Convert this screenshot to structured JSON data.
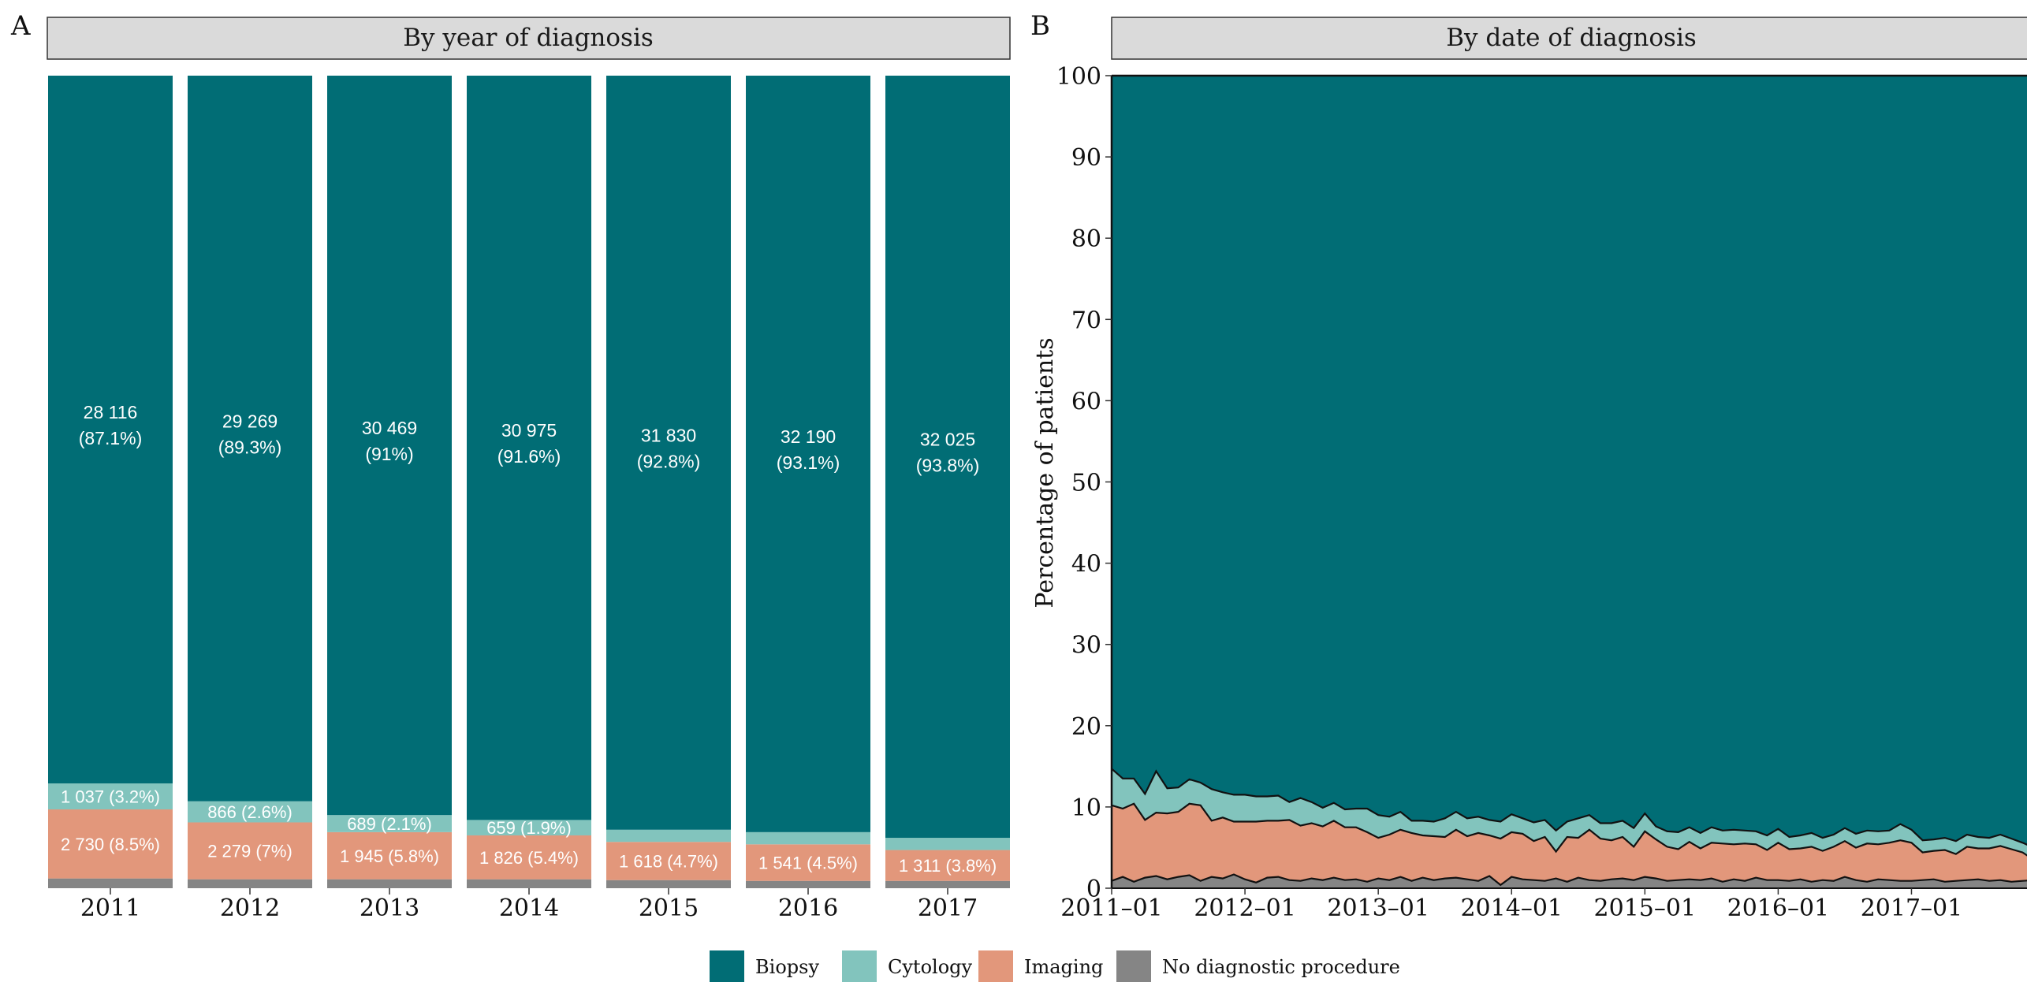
{
  "colors": {
    "biopsy": "#016D75",
    "cytology": "#82C4BD",
    "imaging": "#E2977B",
    "none": "#858585",
    "strip": "#DADADA",
    "label_text": "#FFFFFF"
  },
  "legend": {
    "items": [
      {
        "key": "biopsy",
        "label": "Biopsy"
      },
      {
        "key": "cytology",
        "label": "Cytology"
      },
      {
        "key": "imaging",
        "label": "Imaging"
      },
      {
        "key": "none",
        "label": "No diagnostic procedure"
      }
    ]
  },
  "chart_data": [
    {
      "panel": "A",
      "type": "bar",
      "stacked": true,
      "title": "By year of diagnosis",
      "xlabel": "",
      "ylabel": "",
      "ylim": [
        0,
        100
      ],
      "categories": [
        "2011",
        "2012",
        "2013",
        "2014",
        "2015",
        "2016",
        "2017"
      ],
      "series": [
        {
          "key": "none",
          "name": "No diagnostic procedure",
          "values": [
            1.2,
            1.1,
            1.1,
            1.1,
            1.0,
            0.9,
            0.9
          ]
        },
        {
          "key": "imaging",
          "name": "Imaging",
          "values": [
            8.5,
            7.0,
            5.8,
            5.4,
            4.7,
            4.5,
            3.8
          ]
        },
        {
          "key": "cytology",
          "name": "Cytology",
          "values": [
            3.2,
            2.6,
            2.1,
            1.9,
            1.5,
            1.5,
            1.5
          ]
        },
        {
          "key": "biopsy",
          "name": "Biopsy",
          "values": [
            87.1,
            89.3,
            91.0,
            91.6,
            92.8,
            93.1,
            93.8
          ]
        }
      ],
      "data_labels": {
        "biopsy": [
          [
            "28 116",
            "(87.1%)"
          ],
          [
            "29 269",
            "(89.3%)"
          ],
          [
            "30 469",
            "(91%)"
          ],
          [
            "30 975",
            "(91.6%)"
          ],
          [
            "31 830",
            "(92.8%)"
          ],
          [
            "32 190",
            "(93.1%)"
          ],
          [
            "32 025",
            "(93.8%)"
          ]
        ],
        "cytology": [
          "1 037 (3.2%)",
          "866 (2.6%)",
          "689 (2.1%)",
          "659 (1.9%)",
          "",
          "",
          ""
        ],
        "imaging": [
          "2 730 (8.5%)",
          "2 279 (7%)",
          "1 945 (5.8%)",
          "1 826 (5.4%)",
          "1 618 (4.7%)",
          "1 541 (4.5%)",
          "1 311 (3.8%)"
        ]
      }
    },
    {
      "panel": "B",
      "type": "area",
      "stacked": true,
      "title": "By date of diagnosis",
      "xlabel": "",
      "ylabel": "Percentage of patients",
      "ylim": [
        0,
        100
      ],
      "yticks": [
        "0",
        "10",
        "20",
        "30",
        "40",
        "50",
        "60",
        "70",
        "80",
        "90",
        "100"
      ],
      "xticks": [
        "2011–01",
        "2012–01",
        "2013–01",
        "2014–01",
        "2015–01",
        "2016–01",
        "2017–01"
      ],
      "x": [
        "2011-01",
        "2011-02",
        "2011-03",
        "2011-04",
        "2011-05",
        "2011-06",
        "2011-07",
        "2011-08",
        "2011-09",
        "2011-10",
        "2011-11",
        "2011-12",
        "2012-01",
        "2012-02",
        "2012-03",
        "2012-04",
        "2012-05",
        "2012-06",
        "2012-07",
        "2012-08",
        "2012-09",
        "2012-10",
        "2012-11",
        "2012-12",
        "2013-01",
        "2013-02",
        "2013-03",
        "2013-04",
        "2013-05",
        "2013-06",
        "2013-07",
        "2013-08",
        "2013-09",
        "2013-10",
        "2013-11",
        "2013-12",
        "2014-01",
        "2014-02",
        "2014-03",
        "2014-04",
        "2014-05",
        "2014-06",
        "2014-07",
        "2014-08",
        "2014-09",
        "2014-10",
        "2014-11",
        "2014-12",
        "2015-01",
        "2015-02",
        "2015-03",
        "2015-04",
        "2015-05",
        "2015-06",
        "2015-07",
        "2015-08",
        "2015-09",
        "2015-10",
        "2015-11",
        "2015-12",
        "2016-01",
        "2016-02",
        "2016-03",
        "2016-04",
        "2016-05",
        "2016-06",
        "2016-07",
        "2016-08",
        "2016-09",
        "2016-10",
        "2016-11",
        "2016-12",
        "2017-01",
        "2017-02",
        "2017-03",
        "2017-04",
        "2017-05",
        "2017-06",
        "2017-07",
        "2017-08",
        "2017-09",
        "2017-10",
        "2017-11",
        "2017-12"
      ],
      "series": [
        {
          "key": "none",
          "name": "No diagnostic procedure",
          "values": [
            0.9,
            1.4,
            0.8,
            1.3,
            1.5,
            1.1,
            1.4,
            1.6,
            0.9,
            1.4,
            1.2,
            1.7,
            1.1,
            0.7,
            1.3,
            1.4,
            1.0,
            0.9,
            1.2,
            1.0,
            1.3,
            1.0,
            1.1,
            0.8,
            1.2,
            1.0,
            1.4,
            0.9,
            1.3,
            1.0,
            1.2,
            1.3,
            1.1,
            0.9,
            1.5,
            0.4,
            1.4,
            1.1,
            1.0,
            0.9,
            1.2,
            0.8,
            1.3,
            1.0,
            0.9,
            1.1,
            1.2,
            1.0,
            1.4,
            1.2,
            0.9,
            1.0,
            1.1,
            1.0,
            1.2,
            0.8,
            1.1,
            0.9,
            1.3,
            1.0,
            1.0,
            0.9,
            1.1,
            0.8,
            1.0,
            0.9,
            1.4,
            1.0,
            0.8,
            1.1,
            1.0,
            0.9,
            0.9,
            1.0,
            1.1,
            0.8,
            0.9,
            1.0,
            1.1,
            0.9,
            1.0,
            0.8,
            0.9,
            1.0
          ]
        },
        {
          "key": "imaging",
          "name": "Imaging",
          "values": [
            9.3,
            8.4,
            9.6,
            7.1,
            7.8,
            8.1,
            8.0,
            8.8,
            9.3,
            6.9,
            7.5,
            6.5,
            7.1,
            7.5,
            7.0,
            6.9,
            7.4,
            6.8,
            6.8,
            6.6,
            7.0,
            6.5,
            6.4,
            6.1,
            5.0,
            5.6,
            5.8,
            5.9,
            5.2,
            5.4,
            5.1,
            5.9,
            5.3,
            5.9,
            5.0,
            5.7,
            5.5,
            5.6,
            4.8,
            5.4,
            3.3,
            5.5,
            4.9,
            6.2,
            5.2,
            4.8,
            5.1,
            4.1,
            5.6,
            4.8,
            4.2,
            3.8,
            4.6,
            3.9,
            4.4,
            4.7,
            4.3,
            4.6,
            4.1,
            3.7,
            4.6,
            3.9,
            3.8,
            4.3,
            3.6,
            4.2,
            4.4,
            4.0,
            4.7,
            4.3,
            4.6,
            5.0,
            4.7,
            3.4,
            3.5,
            3.9,
            3.3,
            4.1,
            3.8,
            4.0,
            4.2,
            4.0,
            3.5,
            2.5
          ]
        },
        {
          "key": "cytology",
          "name": "Cytology",
          "values": [
            4.5,
            3.7,
            3.1,
            3.2,
            5.1,
            3.1,
            3.0,
            3.0,
            2.8,
            3.9,
            3.1,
            3.3,
            3.3,
            3.1,
            3.0,
            3.1,
            2.2,
            3.4,
            2.6,
            2.3,
            2.2,
            2.2,
            2.3,
            2.9,
            2.8,
            2.2,
            2.2,
            1.5,
            1.8,
            1.8,
            2.3,
            2.2,
            2.2,
            2.0,
            1.9,
            2.1,
            2.2,
            1.9,
            2.3,
            2.1,
            2.6,
            1.9,
            2.4,
            1.8,
            1.9,
            2.1,
            2.0,
            2.3,
            2.2,
            1.6,
            1.9,
            2.1,
            1.8,
            1.9,
            1.9,
            1.6,
            1.8,
            1.6,
            1.6,
            1.8,
            1.7,
            1.5,
            1.6,
            1.7,
            1.6,
            1.5,
            1.6,
            1.7,
            1.6,
            1.6,
            1.5,
            2.0,
            1.6,
            1.5,
            1.4,
            1.5,
            1.6,
            1.5,
            1.4,
            1.3,
            1.4,
            1.3,
            1.2,
            1.5
          ]
        }
      ]
    }
  ]
}
